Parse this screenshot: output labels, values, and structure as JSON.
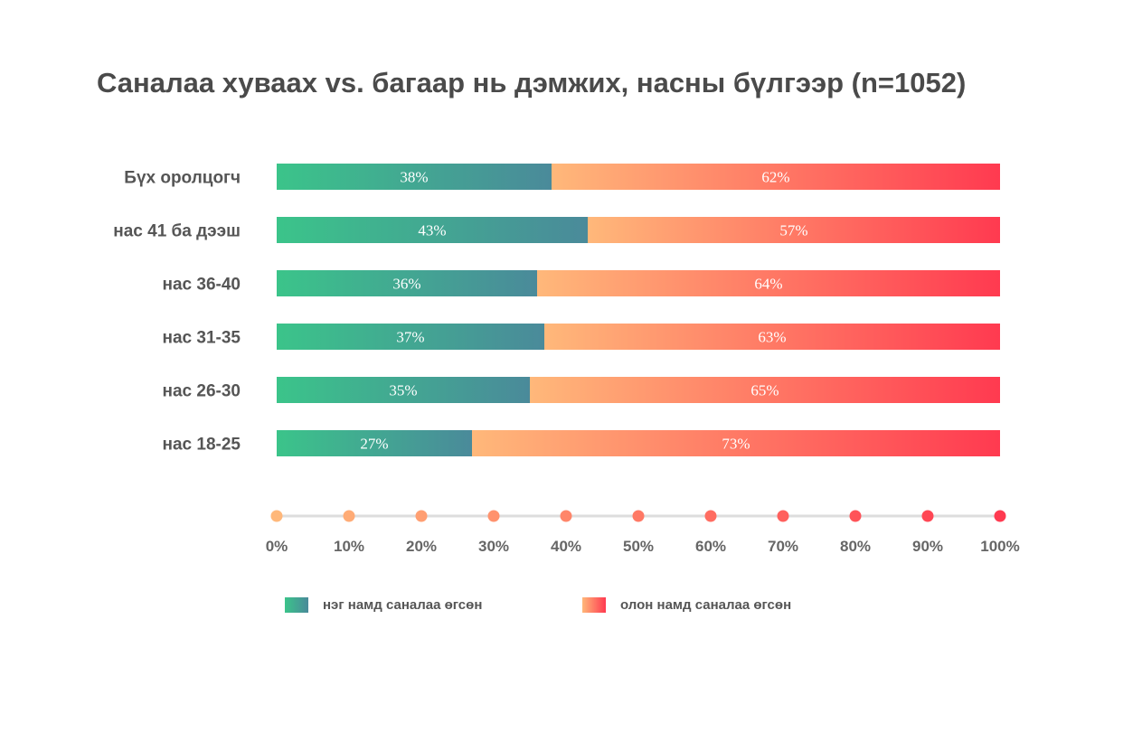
{
  "chart_data": {
    "type": "bar",
    "orientation": "horizontal",
    "stacked": true,
    "title": "Саналаа хуваах vs. багаар нь дэмжих, насны бүлгээр (n=1052)",
    "categories": [
      "Бүх оролцогч",
      "нас 41 ба дээш",
      "нас 36-40",
      "нас 31-35",
      "нас 26-30",
      "нас 18-25"
    ],
    "series": [
      {
        "name": "нэг намд саналаа өгсөн",
        "values": [
          38,
          43,
          36,
          37,
          35,
          27
        ],
        "labels": [
          "38%",
          "43%",
          "36%",
          "37%",
          "35%",
          "27%"
        ]
      },
      {
        "name": "олон намд саналаа өгсөн",
        "values": [
          62,
          57,
          64,
          63,
          65,
          73
        ],
        "labels": [
          "62%",
          "57%",
          "64%",
          "63%",
          "65%",
          "73%"
        ]
      }
    ],
    "xlim": [
      0,
      100
    ],
    "x_ticks": [
      0,
      10,
      20,
      30,
      40,
      50,
      60,
      70,
      80,
      90,
      100
    ],
    "x_tick_labels": [
      "0%",
      "10%",
      "20%",
      "30%",
      "40%",
      "50%",
      "60%",
      "70%",
      "80%",
      "90%",
      "100%"
    ],
    "legend_position": "bottom"
  },
  "colors": {
    "series1_start": "#3bc48a",
    "series1_end": "#4a8a9a",
    "series2_start": "#ffb87a",
    "series2_end": "#ff3a50",
    "axis_line": "#dddddd"
  }
}
